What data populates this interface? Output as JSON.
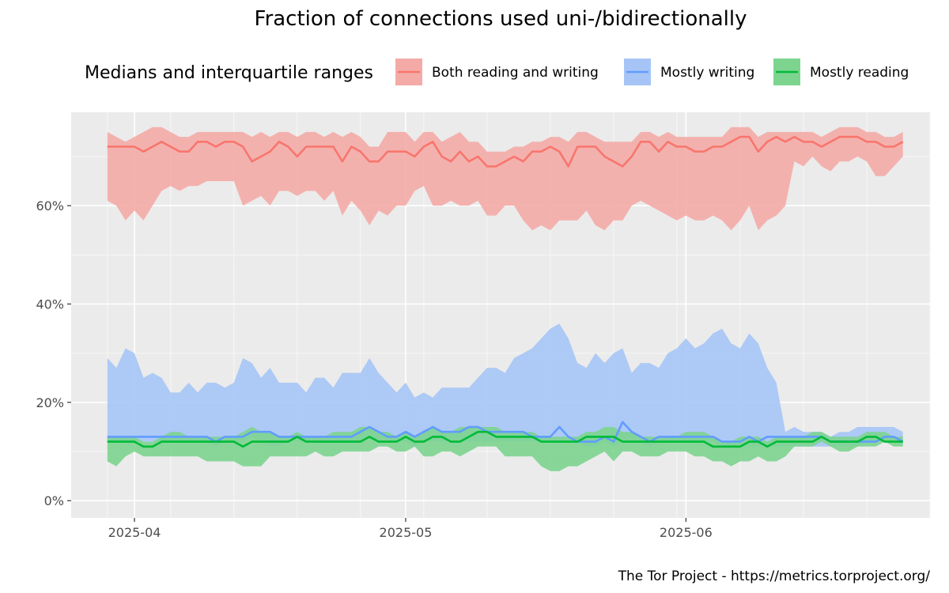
{
  "chart_data": {
    "type": "area",
    "title": "Fraction of connections used uni-/bidirectionally",
    "caption": "The Tor Project - https://metrics.torproject.org/",
    "legend": {
      "title": "Medians and interquartile ranges",
      "position": "top"
    },
    "x_start_date": "2025-03-29",
    "x_step": "1 day",
    "xlim": [
      "2025-03-25",
      "2025-06-28"
    ],
    "ylim": [
      -0.035,
      0.79
    ],
    "x_ticks": [
      {
        "label": "2025-04",
        "date": "2025-04-01"
      },
      {
        "label": "2025-05",
        "date": "2025-05-01"
      },
      {
        "label": "2025-06",
        "date": "2025-06-01"
      }
    ],
    "y_ticks": [
      {
        "label": "0%",
        "value": 0
      },
      {
        "label": "20%",
        "value": 0.2
      },
      {
        "label": "40%",
        "value": 0.4
      },
      {
        "label": "60%",
        "value": 0.6
      }
    ],
    "grid": true,
    "series": [
      {
        "name": "Both reading and writing",
        "line_color": "#F8766D",
        "ribbon_color": "#F4ABA7",
        "q1": [
          0.61,
          0.6,
          0.57,
          0.59,
          0.57,
          0.6,
          0.63,
          0.64,
          0.63,
          0.64,
          0.64,
          0.65,
          0.65,
          0.65,
          0.65,
          0.6,
          0.61,
          0.62,
          0.6,
          0.63,
          0.63,
          0.62,
          0.63,
          0.63,
          0.61,
          0.63,
          0.58,
          0.61,
          0.59,
          0.56,
          0.59,
          0.58,
          0.6,
          0.6,
          0.63,
          0.64,
          0.6,
          0.6,
          0.61,
          0.6,
          0.6,
          0.61,
          0.58,
          0.58,
          0.6,
          0.6,
          0.57,
          0.55,
          0.56,
          0.55,
          0.57,
          0.57,
          0.57,
          0.59,
          0.56,
          0.55,
          0.57,
          0.57,
          0.6,
          0.61,
          0.6,
          0.59,
          0.58,
          0.57,
          0.58,
          0.57,
          0.57,
          0.58,
          0.57,
          0.55,
          0.57,
          0.6,
          0.55,
          0.57,
          0.58,
          0.6,
          0.69,
          0.68,
          0.7,
          0.68,
          0.67,
          0.69,
          0.69,
          0.7,
          0.69,
          0.66,
          0.66,
          0.68,
          0.7
        ],
        "median": [
          0.72,
          0.72,
          0.72,
          0.72,
          0.71,
          0.72,
          0.73,
          0.72,
          0.71,
          0.71,
          0.73,
          0.73,
          0.72,
          0.73,
          0.73,
          0.72,
          0.69,
          0.7,
          0.71,
          0.73,
          0.72,
          0.7,
          0.72,
          0.72,
          0.72,
          0.72,
          0.69,
          0.72,
          0.71,
          0.69,
          0.69,
          0.71,
          0.71,
          0.71,
          0.7,
          0.72,
          0.73,
          0.7,
          0.69,
          0.71,
          0.69,
          0.7,
          0.68,
          0.68,
          0.69,
          0.7,
          0.69,
          0.71,
          0.71,
          0.72,
          0.71,
          0.68,
          0.72,
          0.72,
          0.72,
          0.7,
          0.69,
          0.68,
          0.7,
          0.73,
          0.73,
          0.71,
          0.73,
          0.72,
          0.72,
          0.71,
          0.71,
          0.72,
          0.72,
          0.73,
          0.74,
          0.74,
          0.71,
          0.73,
          0.74,
          0.73,
          0.74,
          0.73,
          0.73,
          0.72,
          0.73,
          0.74,
          0.74,
          0.74,
          0.73,
          0.73,
          0.72,
          0.72,
          0.73
        ],
        "q3": [
          0.75,
          0.74,
          0.73,
          0.74,
          0.75,
          0.76,
          0.76,
          0.75,
          0.74,
          0.74,
          0.75,
          0.75,
          0.75,
          0.75,
          0.75,
          0.75,
          0.74,
          0.75,
          0.74,
          0.75,
          0.75,
          0.74,
          0.75,
          0.75,
          0.74,
          0.75,
          0.74,
          0.75,
          0.74,
          0.72,
          0.72,
          0.75,
          0.75,
          0.75,
          0.73,
          0.75,
          0.75,
          0.73,
          0.74,
          0.75,
          0.73,
          0.73,
          0.71,
          0.71,
          0.71,
          0.72,
          0.72,
          0.73,
          0.73,
          0.74,
          0.74,
          0.73,
          0.75,
          0.75,
          0.74,
          0.73,
          0.73,
          0.73,
          0.73,
          0.75,
          0.75,
          0.74,
          0.75,
          0.74,
          0.74,
          0.74,
          0.74,
          0.74,
          0.74,
          0.76,
          0.76,
          0.76,
          0.74,
          0.75,
          0.75,
          0.75,
          0.75,
          0.75,
          0.75,
          0.74,
          0.75,
          0.76,
          0.76,
          0.76,
          0.75,
          0.75,
          0.74,
          0.74,
          0.75
        ]
      },
      {
        "name": "Mostly writing",
        "line_color": "#619CFF",
        "ribbon_color": "#A6C5F6",
        "q1": [
          0.12,
          0.12,
          0.12,
          0.12,
          0.12,
          0.12,
          0.12,
          0.12,
          0.12,
          0.12,
          0.12,
          0.12,
          0.11,
          0.12,
          0.12,
          0.12,
          0.13,
          0.12,
          0.11,
          0.11,
          0.12,
          0.12,
          0.12,
          0.12,
          0.12,
          0.12,
          0.12,
          0.12,
          0.12,
          0.13,
          0.12,
          0.12,
          0.12,
          0.12,
          0.11,
          0.12,
          0.12,
          0.12,
          0.12,
          0.12,
          0.12,
          0.12,
          0.12,
          0.12,
          0.12,
          0.12,
          0.12,
          0.12,
          0.12,
          0.12,
          0.12,
          0.12,
          0.12,
          0.11,
          0.11,
          0.12,
          0.11,
          0.12,
          0.12,
          0.12,
          0.11,
          0.12,
          0.12,
          0.12,
          0.12,
          0.12,
          0.12,
          0.12,
          0.11,
          0.11,
          0.11,
          0.11,
          0.11,
          0.11,
          0.11,
          0.11,
          0.11,
          0.11,
          0.11,
          0.11,
          0.11,
          0.11,
          0.11,
          0.11,
          0.12,
          0.12,
          0.12,
          0.12,
          0.12
        ],
        "median": [
          0.13,
          0.13,
          0.13,
          0.13,
          0.13,
          0.13,
          0.13,
          0.13,
          0.13,
          0.13,
          0.13,
          0.13,
          0.12,
          0.13,
          0.13,
          0.13,
          0.14,
          0.14,
          0.14,
          0.13,
          0.13,
          0.13,
          0.13,
          0.13,
          0.13,
          0.13,
          0.13,
          0.13,
          0.14,
          0.15,
          0.14,
          0.13,
          0.13,
          0.14,
          0.13,
          0.14,
          0.15,
          0.14,
          0.14,
          0.14,
          0.15,
          0.15,
          0.14,
          0.14,
          0.14,
          0.14,
          0.14,
          0.13,
          0.13,
          0.13,
          0.15,
          0.13,
          0.12,
          0.12,
          0.12,
          0.13,
          0.12,
          0.16,
          0.14,
          0.13,
          0.12,
          0.13,
          0.13,
          0.13,
          0.13,
          0.13,
          0.13,
          0.13,
          0.12,
          0.12,
          0.12,
          0.13,
          0.12,
          0.13,
          0.13,
          0.13,
          0.13,
          0.13,
          0.13,
          0.13,
          0.12,
          0.12,
          0.12,
          0.12,
          0.12,
          0.12,
          0.13,
          0.13,
          0.12
        ],
        "q3": [
          0.29,
          0.27,
          0.31,
          0.3,
          0.25,
          0.26,
          0.25,
          0.22,
          0.22,
          0.24,
          0.22,
          0.24,
          0.24,
          0.23,
          0.24,
          0.29,
          0.28,
          0.25,
          0.27,
          0.24,
          0.24,
          0.24,
          0.22,
          0.25,
          0.25,
          0.23,
          0.26,
          0.26,
          0.26,
          0.29,
          0.26,
          0.24,
          0.22,
          0.24,
          0.21,
          0.22,
          0.21,
          0.23,
          0.23,
          0.23,
          0.23,
          0.25,
          0.27,
          0.27,
          0.26,
          0.29,
          0.3,
          0.31,
          0.33,
          0.35,
          0.36,
          0.33,
          0.28,
          0.27,
          0.3,
          0.28,
          0.3,
          0.31,
          0.26,
          0.28,
          0.28,
          0.27,
          0.3,
          0.31,
          0.33,
          0.31,
          0.32,
          0.34,
          0.35,
          0.32,
          0.31,
          0.34,
          0.32,
          0.27,
          0.24,
          0.14,
          0.15,
          0.14,
          0.14,
          0.14,
          0.13,
          0.14,
          0.14,
          0.15,
          0.15,
          0.15,
          0.15,
          0.15,
          0.14
        ]
      },
      {
        "name": "Mostly reading",
        "line_color": "#00BA38",
        "ribbon_color": "#7CD48F",
        "q1": [
          0.08,
          0.07,
          0.09,
          0.1,
          0.09,
          0.09,
          0.09,
          0.09,
          0.09,
          0.09,
          0.09,
          0.08,
          0.08,
          0.08,
          0.08,
          0.07,
          0.07,
          0.07,
          0.09,
          0.09,
          0.09,
          0.09,
          0.09,
          0.1,
          0.09,
          0.09,
          0.1,
          0.1,
          0.1,
          0.1,
          0.11,
          0.11,
          0.1,
          0.1,
          0.11,
          0.09,
          0.09,
          0.1,
          0.1,
          0.09,
          0.1,
          0.11,
          0.11,
          0.11,
          0.09,
          0.09,
          0.09,
          0.09,
          0.07,
          0.06,
          0.06,
          0.07,
          0.07,
          0.08,
          0.09,
          0.1,
          0.08,
          0.1,
          0.1,
          0.09,
          0.09,
          0.09,
          0.1,
          0.1,
          0.1,
          0.09,
          0.09,
          0.08,
          0.08,
          0.07,
          0.08,
          0.08,
          0.09,
          0.08,
          0.08,
          0.09,
          0.11,
          0.11,
          0.11,
          0.12,
          0.11,
          0.1,
          0.1,
          0.11,
          0.11,
          0.11,
          0.12,
          0.11,
          0.11
        ],
        "median": [
          0.12,
          0.12,
          0.12,
          0.12,
          0.11,
          0.11,
          0.12,
          0.12,
          0.12,
          0.12,
          0.12,
          0.12,
          0.12,
          0.12,
          0.12,
          0.11,
          0.12,
          0.12,
          0.12,
          0.12,
          0.12,
          0.13,
          0.12,
          0.12,
          0.12,
          0.12,
          0.12,
          0.12,
          0.12,
          0.13,
          0.12,
          0.12,
          0.12,
          0.13,
          0.12,
          0.12,
          0.13,
          0.13,
          0.12,
          0.12,
          0.13,
          0.14,
          0.14,
          0.13,
          0.13,
          0.13,
          0.13,
          0.13,
          0.12,
          0.12,
          0.12,
          0.12,
          0.12,
          0.13,
          0.13,
          0.13,
          0.13,
          0.12,
          0.12,
          0.12,
          0.12,
          0.12,
          0.12,
          0.12,
          0.12,
          0.12,
          0.12,
          0.11,
          0.11,
          0.11,
          0.11,
          0.12,
          0.12,
          0.11,
          0.12,
          0.12,
          0.12,
          0.12,
          0.12,
          0.13,
          0.12,
          0.12,
          0.12,
          0.12,
          0.13,
          0.13,
          0.12,
          0.12,
          0.12
        ],
        "q3": [
          0.13,
          0.13,
          0.13,
          0.13,
          0.12,
          0.12,
          0.13,
          0.14,
          0.14,
          0.13,
          0.13,
          0.13,
          0.13,
          0.13,
          0.13,
          0.14,
          0.15,
          0.14,
          0.14,
          0.13,
          0.13,
          0.14,
          0.13,
          0.13,
          0.13,
          0.14,
          0.14,
          0.14,
          0.15,
          0.15,
          0.14,
          0.14,
          0.13,
          0.14,
          0.13,
          0.14,
          0.15,
          0.14,
          0.14,
          0.15,
          0.15,
          0.15,
          0.15,
          0.15,
          0.14,
          0.14,
          0.14,
          0.14,
          0.13,
          0.13,
          0.13,
          0.13,
          0.13,
          0.14,
          0.14,
          0.15,
          0.15,
          0.14,
          0.14,
          0.13,
          0.13,
          0.13,
          0.13,
          0.13,
          0.14,
          0.14,
          0.14,
          0.13,
          0.12,
          0.12,
          0.13,
          0.13,
          0.13,
          0.12,
          0.13,
          0.13,
          0.13,
          0.13,
          0.14,
          0.14,
          0.13,
          0.13,
          0.13,
          0.13,
          0.14,
          0.14,
          0.14,
          0.13,
          0.13
        ]
      }
    ]
  }
}
